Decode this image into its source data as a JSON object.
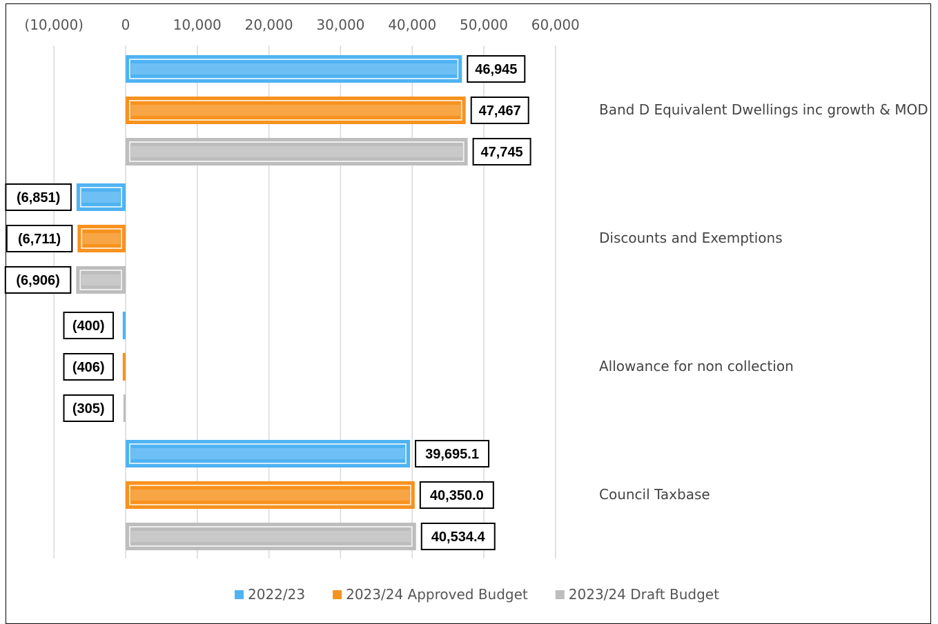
{
  "chart_data": {
    "type": "bar",
    "orientation": "horizontal",
    "categories": [
      "Band D Equivalent Dwellings inc growth & MOD",
      "Discounts and Exemptions",
      "Allowance for non collection",
      "Council Taxbase"
    ],
    "series": [
      {
        "name": "2022/23",
        "color": "#4fb3f2",
        "values": [
          46945,
          -6851,
          -400,
          39695.1
        ],
        "labels": [
          "46,945",
          "(6,851)",
          "(400)",
          "39,695.1"
        ]
      },
      {
        "name": "2023/24 Approved Budget",
        "color": "#f7921e",
        "values": [
          47467,
          -6711,
          -406,
          40350.0
        ],
        "labels": [
          "47,467",
          "(6,711)",
          "(406)",
          "40,350.0"
        ]
      },
      {
        "name": "2023/24 Draft Budget",
        "color": "#bdbdbd",
        "values": [
          47745,
          -6906,
          -305,
          40534.4
        ],
        "labels": [
          "47,745",
          "(6,906)",
          "(305)",
          "40,534.4"
        ]
      }
    ],
    "xlim": [
      -10000,
      60000
    ],
    "x_ticks": [
      -10000,
      0,
      10000,
      20000,
      30000,
      40000,
      50000,
      60000
    ],
    "x_tick_labels": [
      "(10,000)",
      "0",
      "10,000",
      "20,000",
      "30,000",
      "40,000",
      "50,000",
      "60,000"
    ],
    "x_axis_position": "top",
    "grid": true,
    "legend_position": "bottom",
    "title": "",
    "xlabel": "",
    "ylabel": ""
  }
}
